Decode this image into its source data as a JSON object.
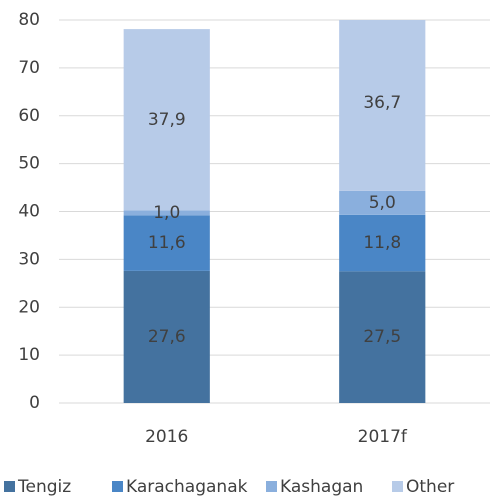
{
  "chart_data": {
    "type": "bar",
    "stacked": true,
    "categories": [
      "2016",
      "2017f"
    ],
    "series": [
      {
        "name": "Tengiz",
        "color": "#44729f",
        "values": [
          27.6,
          27.5
        ],
        "value_labels": [
          "27,6",
          "27,5"
        ]
      },
      {
        "name": "Karachaganak",
        "color": "#4a86c6",
        "values": [
          11.6,
          11.8
        ],
        "value_labels": [
          "11,6",
          "11,8"
        ]
      },
      {
        "name": "Kashagan",
        "color": "#8aafdd",
        "values": [
          1.0,
          5.0
        ],
        "value_labels": [
          "1,0",
          "5,0"
        ]
      },
      {
        "name": "Other",
        "color": "#b7cbe8",
        "values": [
          37.9,
          36.7
        ],
        "value_labels": [
          "37,9",
          "36,7"
        ]
      }
    ],
    "ylim": [
      0,
      80
    ],
    "yticks": [
      0,
      10,
      20,
      30,
      40,
      50,
      60,
      70,
      80
    ],
    "grid": true,
    "legend": "bottom"
  }
}
